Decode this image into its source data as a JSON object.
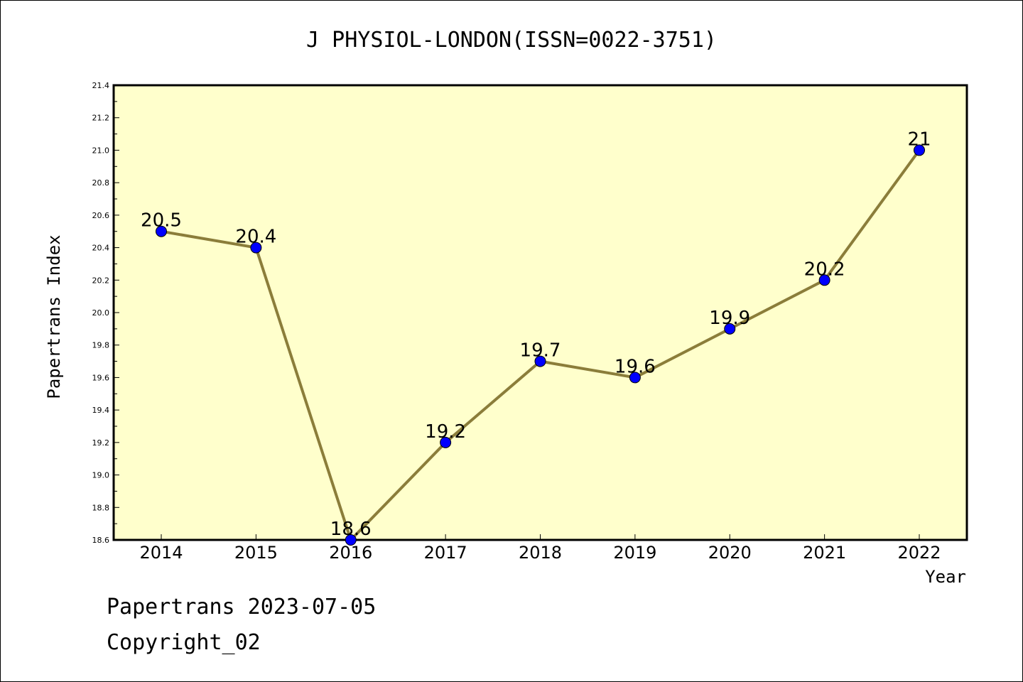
{
  "chart_data": {
    "type": "line",
    "title": "J PHYSIOL-LONDON(ISSN=0022-3751)",
    "xlabel": "Year",
    "ylabel": "Papertrans Index",
    "x": [
      "2014",
      "2015",
      "2016",
      "2017",
      "2018",
      "2019",
      "2020",
      "2021",
      "2022"
    ],
    "values": [
      20.5,
      20.4,
      18.6,
      19.2,
      19.7,
      19.6,
      19.9,
      20.2,
      21
    ],
    "data_labels": [
      "20.5",
      "20.4",
      "18.6",
      "19.2",
      "19.7",
      "19.6",
      "19.9",
      "20.2",
      "21"
    ],
    "ylim": [
      18.6,
      21.4
    ],
    "yticks": [
      "18.6",
      "18.8",
      "19.0",
      "19.2",
      "19.4",
      "19.6",
      "19.8",
      "20.0",
      "20.2",
      "20.4",
      "20.6",
      "20.8",
      "21.0",
      "21.2",
      "21.4"
    ],
    "grid": false,
    "colors": {
      "plot_background": "#ffffcc",
      "line": "#8b7d3a",
      "marker": "#0000ff"
    }
  },
  "footer": {
    "line1": "Papertrans 2023-07-05",
    "line2": "Copyright_02"
  }
}
